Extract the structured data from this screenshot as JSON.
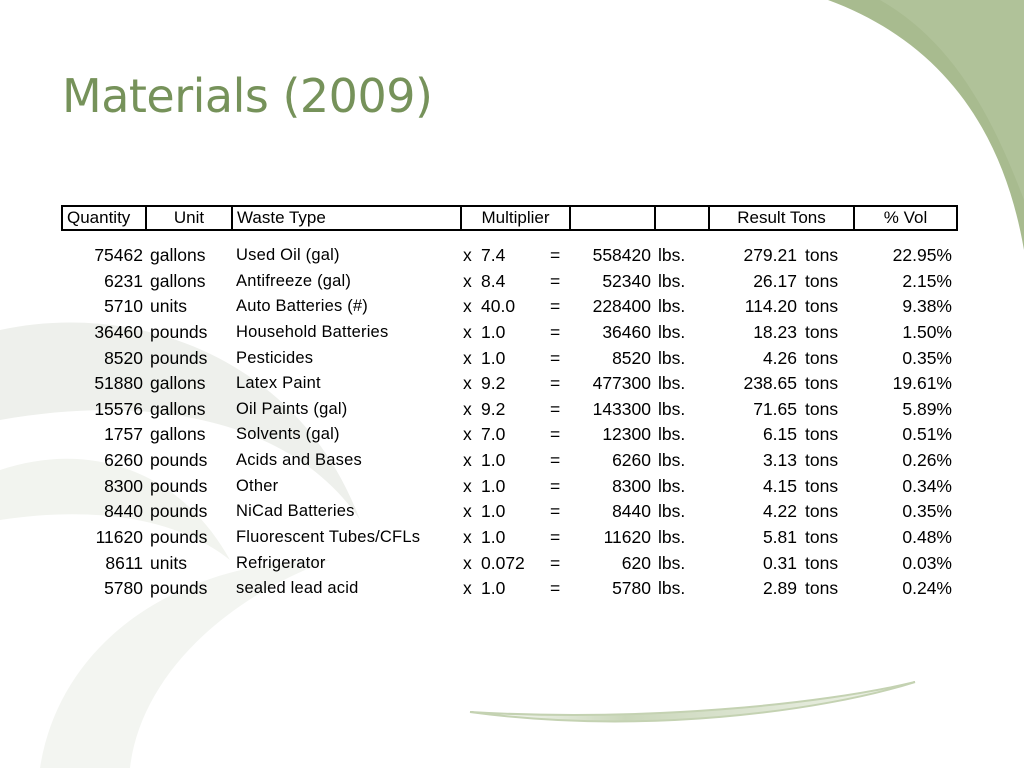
{
  "title": "Materials (2009)",
  "headers": {
    "quantity": "Quantity",
    "unit": "Unit",
    "waste_type": "Waste Type",
    "multiplier": "Multiplier",
    "blank1": "",
    "blank2": "",
    "result_tons": "Result Tons",
    "pct_vol": "% Vol"
  },
  "rows": [
    {
      "qty": "75462",
      "unit": "gallons",
      "type": "Used Oil (gal)",
      "x": "x",
      "mult": "7.4",
      "eq": "=",
      "lbs": "558420",
      "lbs_unit": "lbs.",
      "tons": "279.21",
      "tons_unit": "tons",
      "pct": "22.95%"
    },
    {
      "qty": "6231",
      "unit": "gallons",
      "type": "Antifreeze (gal)",
      "x": "x",
      "mult": "8.4",
      "eq": "=",
      "lbs": "52340",
      "lbs_unit": "lbs.",
      "tons": "26.17",
      "tons_unit": "tons",
      "pct": "2.15%"
    },
    {
      "qty": "5710",
      "unit": "units",
      "type": "Auto Batteries (#)",
      "x": "x",
      "mult": "40.0",
      "eq": "=",
      "lbs": "228400",
      "lbs_unit": "lbs.",
      "tons": "114.20",
      "tons_unit": "tons",
      "pct": "9.38%"
    },
    {
      "qty": "36460",
      "unit": "pounds",
      "type": "Household Batteries",
      "x": "x",
      "mult": "1.0",
      "eq": "=",
      "lbs": "36460",
      "lbs_unit": "lbs.",
      "tons": "18.23",
      "tons_unit": "tons",
      "pct": "1.50%"
    },
    {
      "qty": "8520",
      "unit": "pounds",
      "type": "Pesticides",
      "x": "x",
      "mult": "1.0",
      "eq": "=",
      "lbs": "8520",
      "lbs_unit": "lbs.",
      "tons": "4.26",
      "tons_unit": "tons",
      "pct": "0.35%"
    },
    {
      "qty": "51880",
      "unit": "gallons",
      "type": "Latex Paint",
      "x": "x",
      "mult": "9.2",
      "eq": "=",
      "lbs": "477300",
      "lbs_unit": "lbs.",
      "tons": "238.65",
      "tons_unit": "tons",
      "pct": "19.61%"
    },
    {
      "qty": "15576",
      "unit": "gallons",
      "type": "Oil Paints (gal)",
      "x": "x",
      "mult": "9.2",
      "eq": "=",
      "lbs": "143300",
      "lbs_unit": "lbs.",
      "tons": "71.65",
      "tons_unit": "tons",
      "pct": "5.89%"
    },
    {
      "qty": "1757",
      "unit": "gallons",
      "type": "Solvents (gal)",
      "x": "x",
      "mult": "7.0",
      "eq": "=",
      "lbs": "12300",
      "lbs_unit": "lbs.",
      "tons": "6.15",
      "tons_unit": "tons",
      "pct": "0.51%"
    },
    {
      "qty": "6260",
      "unit": "pounds",
      "type": "Acids and Bases",
      "x": "x",
      "mult": "1.0",
      "eq": "=",
      "lbs": "6260",
      "lbs_unit": "lbs.",
      "tons": "3.13",
      "tons_unit": "tons",
      "pct": "0.26%"
    },
    {
      "qty": "8300",
      "unit": "pounds",
      "type": "Other",
      "x": "x",
      "mult": "1.0",
      "eq": "=",
      "lbs": "8300",
      "lbs_unit": "lbs.",
      "tons": "4.15",
      "tons_unit": "tons",
      "pct": "0.34%"
    },
    {
      "qty": "8440",
      "unit": "pounds",
      "type": "NiCad Batteries",
      "x": "x",
      "mult": "1.0",
      "eq": "=",
      "lbs": "8440",
      "lbs_unit": "lbs.",
      "tons": "4.22",
      "tons_unit": "tons",
      "pct": "0.35%"
    },
    {
      "qty": "11620",
      "unit": "pounds",
      "type": "Fluorescent Tubes/CFLs",
      "x": "x",
      "mult": "1.0",
      "eq": "=",
      "lbs": "11620",
      "lbs_unit": "lbs.",
      "tons": "5.81",
      "tons_unit": "tons",
      "pct": "0.48%"
    },
    {
      "qty": "8611",
      "unit": "units",
      "type": "Refrigerator",
      "x": "x",
      "mult": "0.072",
      "eq": "=",
      "lbs": "620",
      "lbs_unit": "lbs.",
      "tons": "0.31",
      "tons_unit": "tons",
      "pct": "0.03%"
    },
    {
      "qty": "5780",
      "unit": "pounds",
      "type": "sealed lead acid",
      "x": "x",
      "mult": "1.0",
      "eq": "=",
      "lbs": "5780",
      "lbs_unit": "lbs.",
      "tons": "2.89",
      "tons_unit": "tons",
      "pct": "0.24%"
    }
  ],
  "theme": {
    "title_color": "#76925a",
    "accent_green": "#a8bb8f",
    "soft_gray": "#eef0ec"
  }
}
